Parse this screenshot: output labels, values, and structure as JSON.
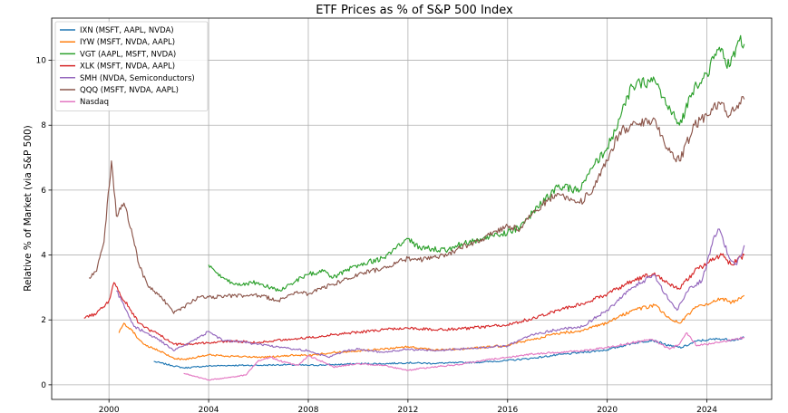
{
  "chart_data": {
    "type": "line",
    "title": "ETF Prices as % of S&P 500 Index",
    "xlabel": "",
    "ylabel": "Relative % of Market (via S&P 500)",
    "xlim": [
      1997.7,
      2026.6
    ],
    "ylim": [
      -0.45,
      11.3
    ],
    "xticks": [
      2000,
      2004,
      2008,
      2012,
      2016,
      2020,
      2024
    ],
    "yticks": [
      0,
      2,
      4,
      6,
      8,
      10
    ],
    "grid": true,
    "legend_position": "top-left",
    "series": [
      {
        "name": "IXN (MSFT, AAPL, NVDA)",
        "color": "#1f77b4",
        "points": [
          [
            2001.8,
            0.72
          ],
          [
            2002.5,
            0.6
          ],
          [
            2003.0,
            0.52
          ],
          [
            2003.5,
            0.55
          ],
          [
            2004.0,
            0.58
          ],
          [
            2005.0,
            0.6
          ],
          [
            2006.0,
            0.6
          ],
          [
            2007.0,
            0.62
          ],
          [
            2008.0,
            0.6
          ],
          [
            2009.0,
            0.62
          ],
          [
            2010.0,
            0.65
          ],
          [
            2011.0,
            0.65
          ],
          [
            2012.0,
            0.68
          ],
          [
            2013.0,
            0.66
          ],
          [
            2014.0,
            0.68
          ],
          [
            2015.0,
            0.7
          ],
          [
            2016.0,
            0.75
          ],
          [
            2017.0,
            0.82
          ],
          [
            2018.0,
            0.92
          ],
          [
            2019.0,
            1.0
          ],
          [
            2020.0,
            1.08
          ],
          [
            2021.0,
            1.28
          ],
          [
            2021.8,
            1.38
          ],
          [
            2022.5,
            1.2
          ],
          [
            2023.0,
            1.15
          ],
          [
            2023.6,
            1.35
          ],
          [
            2024.0,
            1.38
          ],
          [
            2024.5,
            1.42
          ],
          [
            2025.0,
            1.38
          ],
          [
            2025.5,
            1.45
          ]
        ]
      },
      {
        "name": "IYW (MSFT, NVDA, AAPL)",
        "color": "#ff7f0e",
        "points": [
          [
            2000.4,
            1.6
          ],
          [
            2000.6,
            1.9
          ],
          [
            2000.9,
            1.7
          ],
          [
            2001.2,
            1.4
          ],
          [
            2001.5,
            1.2
          ],
          [
            2002.0,
            1.05
          ],
          [
            2002.6,
            0.82
          ],
          [
            2003.0,
            0.78
          ],
          [
            2004.0,
            0.92
          ],
          [
            2005.0,
            0.88
          ],
          [
            2006.0,
            0.85
          ],
          [
            2007.0,
            0.88
          ],
          [
            2007.5,
            0.92
          ],
          [
            2008.0,
            0.9
          ],
          [
            2009.0,
            1.0
          ],
          [
            2010.0,
            1.05
          ],
          [
            2011.0,
            1.1
          ],
          [
            2012.0,
            1.18
          ],
          [
            2013.0,
            1.08
          ],
          [
            2014.0,
            1.1
          ],
          [
            2015.0,
            1.15
          ],
          [
            2016.0,
            1.22
          ],
          [
            2017.0,
            1.4
          ],
          [
            2018.0,
            1.58
          ],
          [
            2019.0,
            1.68
          ],
          [
            2020.0,
            1.9
          ],
          [
            2021.0,
            2.3
          ],
          [
            2021.9,
            2.45
          ],
          [
            2022.5,
            2.05
          ],
          [
            2022.9,
            1.9
          ],
          [
            2023.5,
            2.35
          ],
          [
            2024.0,
            2.5
          ],
          [
            2024.6,
            2.65
          ],
          [
            2025.0,
            2.55
          ],
          [
            2025.5,
            2.75
          ]
        ]
      },
      {
        "name": "VGT (AAPL, MSFT, NVDA)",
        "color": "#2ca02c",
        "points": [
          [
            2004.0,
            3.7
          ],
          [
            2004.5,
            3.3
          ],
          [
            2005.0,
            3.1
          ],
          [
            2006.0,
            3.15
          ],
          [
            2006.8,
            2.9
          ],
          [
            2007.5,
            3.2
          ],
          [
            2008.0,
            3.4
          ],
          [
            2008.6,
            3.5
          ],
          [
            2009.0,
            3.3
          ],
          [
            2010.0,
            3.7
          ],
          [
            2011.0,
            3.9
          ],
          [
            2012.0,
            4.5
          ],
          [
            2012.5,
            4.2
          ],
          [
            2013.0,
            4.2
          ],
          [
            2013.6,
            4.15
          ],
          [
            2014.0,
            4.3
          ],
          [
            2015.0,
            4.5
          ],
          [
            2016.0,
            4.7
          ],
          [
            2016.5,
            4.85
          ],
          [
            2017.0,
            5.3
          ],
          [
            2018.0,
            6.1
          ],
          [
            2018.9,
            6.0
          ],
          [
            2019.5,
            6.8
          ],
          [
            2020.0,
            7.3
          ],
          [
            2020.5,
            8.2
          ],
          [
            2021.0,
            9.2
          ],
          [
            2021.9,
            9.4
          ],
          [
            2022.4,
            8.6
          ],
          [
            2022.9,
            8.0
          ],
          [
            2023.5,
            9.2
          ],
          [
            2024.0,
            9.6
          ],
          [
            2024.5,
            10.4
          ],
          [
            2024.9,
            9.8
          ],
          [
            2025.3,
            10.6
          ],
          [
            2025.5,
            10.5
          ]
        ]
      },
      {
        "name": "XLK (MSFT, NVDA, AAPL)",
        "color": "#d62728",
        "points": [
          [
            1999.0,
            2.05
          ],
          [
            1999.5,
            2.2
          ],
          [
            2000.0,
            2.6
          ],
          [
            2000.2,
            3.15
          ],
          [
            2000.5,
            2.7
          ],
          [
            2000.8,
            2.4
          ],
          [
            2001.2,
            1.9
          ],
          [
            2001.6,
            1.7
          ],
          [
            2002.0,
            1.55
          ],
          [
            2002.6,
            1.25
          ],
          [
            2003.0,
            1.25
          ],
          [
            2004.0,
            1.3
          ],
          [
            2005.0,
            1.35
          ],
          [
            2006.0,
            1.3
          ],
          [
            2007.0,
            1.4
          ],
          [
            2008.0,
            1.45
          ],
          [
            2009.0,
            1.55
          ],
          [
            2010.0,
            1.62
          ],
          [
            2011.0,
            1.7
          ],
          [
            2012.0,
            1.75
          ],
          [
            2013.0,
            1.7
          ],
          [
            2014.0,
            1.72
          ],
          [
            2015.0,
            1.78
          ],
          [
            2016.0,
            1.85
          ],
          [
            2017.0,
            2.05
          ],
          [
            2018.0,
            2.3
          ],
          [
            2019.0,
            2.5
          ],
          [
            2020.0,
            2.8
          ],
          [
            2021.0,
            3.2
          ],
          [
            2021.9,
            3.45
          ],
          [
            2022.5,
            3.1
          ],
          [
            2022.9,
            2.95
          ],
          [
            2023.5,
            3.5
          ],
          [
            2024.0,
            3.75
          ],
          [
            2024.6,
            4.0
          ],
          [
            2025.0,
            3.7
          ],
          [
            2025.5,
            4.0
          ]
        ]
      },
      {
        "name": "SMH (NVDA, Semiconductors)",
        "color": "#9467bd",
        "points": [
          [
            2000.3,
            2.9
          ],
          [
            2000.5,
            2.6
          ],
          [
            2000.8,
            2.1
          ],
          [
            2001.0,
            1.8
          ],
          [
            2001.5,
            1.6
          ],
          [
            2002.0,
            1.4
          ],
          [
            2002.6,
            1.05
          ],
          [
            2003.0,
            1.2
          ],
          [
            2003.6,
            1.45
          ],
          [
            2004.0,
            1.65
          ],
          [
            2004.6,
            1.35
          ],
          [
            2005.0,
            1.35
          ],
          [
            2006.0,
            1.25
          ],
          [
            2007.0,
            1.15
          ],
          [
            2008.0,
            1.05
          ],
          [
            2008.8,
            0.85
          ],
          [
            2009.5,
            1.05
          ],
          [
            2010.0,
            1.1
          ],
          [
            2011.0,
            1.0
          ],
          [
            2012.0,
            1.1
          ],
          [
            2013.0,
            1.05
          ],
          [
            2014.0,
            1.1
          ],
          [
            2015.0,
            1.15
          ],
          [
            2016.0,
            1.2
          ],
          [
            2017.0,
            1.55
          ],
          [
            2018.0,
            1.7
          ],
          [
            2019.0,
            1.8
          ],
          [
            2020.0,
            2.3
          ],
          [
            2020.6,
            2.7
          ],
          [
            2021.0,
            3.0
          ],
          [
            2021.9,
            3.4
          ],
          [
            2022.3,
            2.8
          ],
          [
            2022.8,
            2.3
          ],
          [
            2023.3,
            3.0
          ],
          [
            2023.8,
            3.2
          ],
          [
            2024.3,
            4.6
          ],
          [
            2024.5,
            4.8
          ],
          [
            2024.9,
            3.9
          ],
          [
            2025.2,
            3.7
          ],
          [
            2025.5,
            4.3
          ]
        ]
      },
      {
        "name": "QQQ (MSFT, NVDA, AAPL)",
        "color": "#8c564b",
        "points": [
          [
            1999.2,
            3.3
          ],
          [
            1999.5,
            3.5
          ],
          [
            1999.8,
            4.4
          ],
          [
            2000.1,
            6.9
          ],
          [
            2000.3,
            5.2
          ],
          [
            2000.6,
            5.6
          ],
          [
            2000.9,
            4.8
          ],
          [
            2001.2,
            3.7
          ],
          [
            2001.6,
            3.0
          ],
          [
            2002.0,
            2.8
          ],
          [
            2002.6,
            2.2
          ],
          [
            2003.0,
            2.4
          ],
          [
            2003.6,
            2.7
          ],
          [
            2004.0,
            2.7
          ],
          [
            2005.0,
            2.75
          ],
          [
            2006.0,
            2.75
          ],
          [
            2006.8,
            2.6
          ],
          [
            2007.5,
            2.85
          ],
          [
            2008.0,
            2.8
          ],
          [
            2008.6,
            3.0
          ],
          [
            2009.0,
            3.1
          ],
          [
            2010.0,
            3.4
          ],
          [
            2011.0,
            3.6
          ],
          [
            2012.0,
            3.9
          ],
          [
            2012.6,
            3.85
          ],
          [
            2013.0,
            3.95
          ],
          [
            2013.6,
            4.0
          ],
          [
            2014.0,
            4.2
          ],
          [
            2015.0,
            4.5
          ],
          [
            2016.0,
            4.9
          ],
          [
            2016.5,
            4.8
          ],
          [
            2017.0,
            5.3
          ],
          [
            2018.0,
            5.9
          ],
          [
            2018.9,
            5.6
          ],
          [
            2019.5,
            6.1
          ],
          [
            2020.0,
            6.9
          ],
          [
            2020.5,
            7.8
          ],
          [
            2021.0,
            8.0
          ],
          [
            2021.9,
            8.2
          ],
          [
            2022.4,
            7.3
          ],
          [
            2022.9,
            6.9
          ],
          [
            2023.5,
            8.0
          ],
          [
            2024.0,
            8.3
          ],
          [
            2024.5,
            8.7
          ],
          [
            2024.9,
            8.3
          ],
          [
            2025.3,
            8.7
          ],
          [
            2025.5,
            8.8
          ]
        ]
      },
      {
        "name": "Nasdaq",
        "color": "#e377c2",
        "points": [
          [
            2003.0,
            0.35
          ],
          [
            2003.5,
            0.25
          ],
          [
            2004.0,
            0.15
          ],
          [
            2004.6,
            0.2
          ],
          [
            2005.0,
            0.25
          ],
          [
            2005.5,
            0.3
          ],
          [
            2006.0,
            0.75
          ],
          [
            2006.5,
            0.85
          ],
          [
            2007.0,
            0.7
          ],
          [
            2007.6,
            0.6
          ],
          [
            2008.0,
            0.9
          ],
          [
            2008.6,
            0.7
          ],
          [
            2009.0,
            0.55
          ],
          [
            2010.0,
            0.65
          ],
          [
            2011.0,
            0.6
          ],
          [
            2012.0,
            0.45
          ],
          [
            2013.0,
            0.55
          ],
          [
            2014.0,
            0.62
          ],
          [
            2015.0,
            0.75
          ],
          [
            2016.0,
            0.85
          ],
          [
            2017.0,
            0.95
          ],
          [
            2018.0,
            1.0
          ],
          [
            2019.0,
            1.05
          ],
          [
            2020.0,
            1.15
          ],
          [
            2021.0,
            1.3
          ],
          [
            2021.8,
            1.4
          ],
          [
            2022.5,
            1.1
          ],
          [
            2022.9,
            1.25
          ],
          [
            2023.2,
            1.6
          ],
          [
            2023.6,
            1.2
          ],
          [
            2024.0,
            1.25
          ],
          [
            2024.5,
            1.3
          ],
          [
            2025.0,
            1.4
          ],
          [
            2025.5,
            1.45
          ]
        ]
      }
    ]
  }
}
